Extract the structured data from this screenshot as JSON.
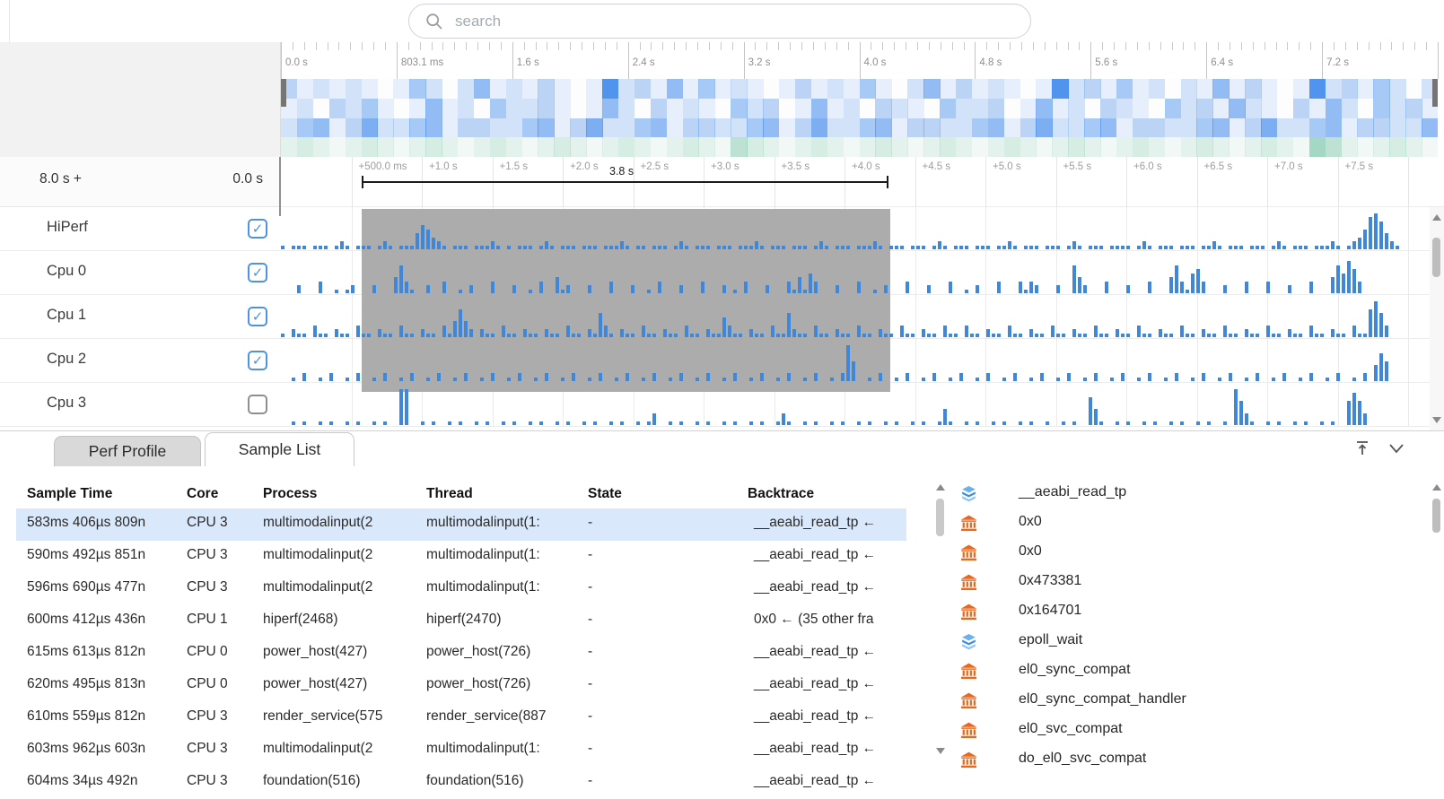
{
  "search": {
    "placeholder": "search"
  },
  "colors": {
    "bar_blue": "#3f87d9",
    "heat_blue": "#1a73e8",
    "heat_green": "#2fa878",
    "selection_gray": "#acacac",
    "selected_row": "#d9e8fb",
    "checkbox_blue": "#4f93dd",
    "icon_orange": "#e8681f",
    "icon_blue": "#3f8ede"
  },
  "overview_ruler": {
    "labels": [
      "0.0 s",
      "803.1 ms",
      "1.6 s",
      "2.4 s",
      "3.2 s",
      "4.0 s",
      "4.8 s",
      "5.6 s",
      "6.4 s",
      "7.2 s"
    ]
  },
  "minimap": {
    "rows": [
      "312121014202512131018231514121013121410251312101823141202151310182314202",
      "120324101512042231015203121042301512032104223015120321042315210315204231",
      "245136224513322451362245133224513622451332245136224513322451362245133225",
      "232123212321232123212321232153212321232123212321232123212321232175212321"
    ]
  },
  "detail_ruler": {
    "total_label": "8.0 s +",
    "start_label": "0.0 s",
    "ticks": [
      "+500.0 ms",
      "+1.0 s",
      "+1.5 s",
      "+2.0 s",
      "+2.5 s",
      "+3.0 s",
      "+3.5 s",
      "+4.0 s",
      "+4.5 s",
      "+5.0 s",
      "+5.5 s",
      "+6.0 s",
      "+6.5 s",
      "+7.0 s",
      "+7.5 s"
    ],
    "selection_duration": "3.8 s"
  },
  "tracks": [
    {
      "label": "HiPerf",
      "checked": true,
      "bars": "101110111012101110121011146532101110111210101110121011101110111210110111012101110111011121011101110121011101112101110111012101110111011210111011101210111011110121011101110112101110111012101110111210123589742100"
    },
    {
      "label": "Cpu 0",
      "checked": true,
      "bars": "000200030010120002000473100200300102000300020010300412000200030002001030002000300020103000200031415300020003001020003000200030010200030003132000200742000300020003000473156300020003000300020003000475863000000000"
    },
    {
      "label": "Cpu 1",
      "checked": true,
      "bars": "102110311021103110211031102110314742021103110211021103110216310211031102110311021153110211031162110311021103110211031102110311031102110311021103110211031102110311021103110211031102110311021103110211031179630000"
    },
    {
      "label": "Cpu 2",
      "checked": true,
      "bars": "001020010200102001020010200102001020010200102001020010200102001020010200102001020010200102001020010200102950010200102001020010200102001020010200102001020010200102001020010200102001020010200102001020010204750000"
    },
    {
      "label": "Cpu 3",
      "checked": false,
      "bars": "001010010100101001010099001010010100101001010010100101001010010100101300101001010010100101001310010100101001010010100101001410010100101001010010010100741001010010100101001010010963100101001010010100686300000000"
    }
  ],
  "tabs": [
    {
      "label": "Perf Profile",
      "active": false
    },
    {
      "label": "Sample List",
      "active": true
    }
  ],
  "panel_icons": [
    {
      "name": "collapse-to-top-icon"
    },
    {
      "name": "chevron-down-icon"
    }
  ],
  "table": {
    "columns": [
      "Sample Time",
      "Core",
      "Process",
      "Thread",
      "State",
      "Backtrace"
    ],
    "rows": [
      {
        "time": "583ms 406µs 809n",
        "core": "CPU 3",
        "process": "multimodalinput(2",
        "thread": "multimodalinput(1:",
        "state": "-",
        "backtrace": "__aeabi_read_tp ←",
        "selected": true
      },
      {
        "time": "590ms 492µs 851n",
        "core": "CPU 3",
        "process": "multimodalinput(2",
        "thread": "multimodalinput(1:",
        "state": "-",
        "backtrace": "__aeabi_read_tp ←",
        "selected": false
      },
      {
        "time": "596ms 690µs 477n",
        "core": "CPU 3",
        "process": "multimodalinput(2",
        "thread": "multimodalinput(1:",
        "state": "-",
        "backtrace": "__aeabi_read_tp ←",
        "selected": false
      },
      {
        "time": "600ms 412µs 436n",
        "core": "CPU 1",
        "process": "hiperf(2468)",
        "thread": "hiperf(2470)",
        "state": "-",
        "backtrace": "0x0 ← (35 other fra",
        "selected": false
      },
      {
        "time": "615ms 613µs 812n",
        "core": "CPU 0",
        "process": "power_host(427)",
        "thread": "power_host(726)",
        "state": "-",
        "backtrace": "__aeabi_read_tp ←",
        "selected": false
      },
      {
        "time": "620ms 495µs 813n",
        "core": "CPU 0",
        "process": "power_host(427)",
        "thread": "power_host(726)",
        "state": "-",
        "backtrace": "__aeabi_read_tp ←",
        "selected": false
      },
      {
        "time": "610ms 559µs 812n",
        "core": "CPU 3",
        "process": "render_service(575",
        "thread": "render_service(887",
        "state": "-",
        "backtrace": "__aeabi_read_tp ←",
        "selected": false
      },
      {
        "time": "603ms 962µs 603n",
        "core": "CPU 3",
        "process": "multimodalinput(2",
        "thread": "multimodalinput(1:",
        "state": "-",
        "backtrace": "__aeabi_read_tp ←",
        "selected": false
      },
      {
        "time": "604ms 34µs 492n",
        "core": "CPU 3",
        "process": "foundation(516)",
        "thread": "foundation(516)",
        "state": "-",
        "backtrace": "__aeabi_read_tp ←",
        "selected": false
      }
    ]
  },
  "callstack": {
    "items": [
      {
        "icon": "layers",
        "label": "__aeabi_read_tp"
      },
      {
        "icon": "bank",
        "label": "0x0"
      },
      {
        "icon": "bank",
        "label": "0x0"
      },
      {
        "icon": "bank",
        "label": "0x473381"
      },
      {
        "icon": "bank",
        "label": "0x164701"
      },
      {
        "icon": "layers",
        "label": "epoll_wait"
      },
      {
        "icon": "bank",
        "label": "el0_sync_compat"
      },
      {
        "icon": "bank",
        "label": "el0_sync_compat_handler"
      },
      {
        "icon": "bank",
        "label": "el0_svc_compat"
      },
      {
        "icon": "bank",
        "label": "do_el0_svc_compat"
      }
    ]
  }
}
